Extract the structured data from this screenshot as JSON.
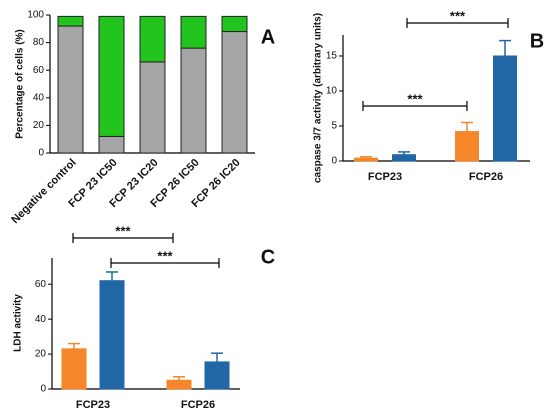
{
  "chart_data": [
    {
      "type": "stacked_bar",
      "panel_label": "A",
      "ylabel": "Percentage of cells (%)",
      "categories": [
        "Negative control",
        "FCP 23 IC50",
        "FCP 23 IC20",
        "FCP 26 IC50",
        "FCP 26 IC20"
      ],
      "series": [
        {
          "color": "#a6a6a6",
          "values": [
            92,
            12,
            66,
            76,
            88
          ]
        },
        {
          "color": "#22c41e",
          "values": [
            7,
            87,
            33,
            23,
            11
          ]
        }
      ],
      "ylim": [
        0,
        100
      ],
      "yticks": [
        0,
        20,
        40,
        60,
        80,
        100
      ]
    },
    {
      "type": "grouped_bar",
      "panel_label": "B",
      "ylabel": "caspase 3/7 activity (arbitrary units)",
      "categories": [
        "FCP23",
        "FCP26"
      ],
      "series": [
        {
          "color": "#f5862a",
          "values": [
            0.4,
            4.2
          ],
          "errors": [
            0.2,
            1.3
          ]
        },
        {
          "color": "#2166a5",
          "values": [
            0.9,
            15
          ],
          "errors": [
            0.4,
            2.2
          ]
        }
      ],
      "ylim": [
        0,
        18
      ],
      "yticks": [
        0,
        5,
        10,
        15
      ],
      "annotations": [
        "***",
        "***"
      ]
    },
    {
      "type": "grouped_bar",
      "panel_label": "C",
      "ylabel": "LDH activity",
      "categories": [
        "FCP23",
        "FCP26"
      ],
      "series": [
        {
          "color": "#f5862a",
          "values": [
            23,
            5
          ],
          "errors": [
            3,
            2
          ]
        },
        {
          "color": "#2166a5",
          "values": [
            62,
            15.5
          ],
          "errors": [
            5,
            5
          ]
        }
      ],
      "ylim": [
        0,
        75
      ],
      "yticks": [
        0,
        20,
        40,
        60
      ],
      "annotations": [
        "***",
        "***"
      ]
    }
  ]
}
